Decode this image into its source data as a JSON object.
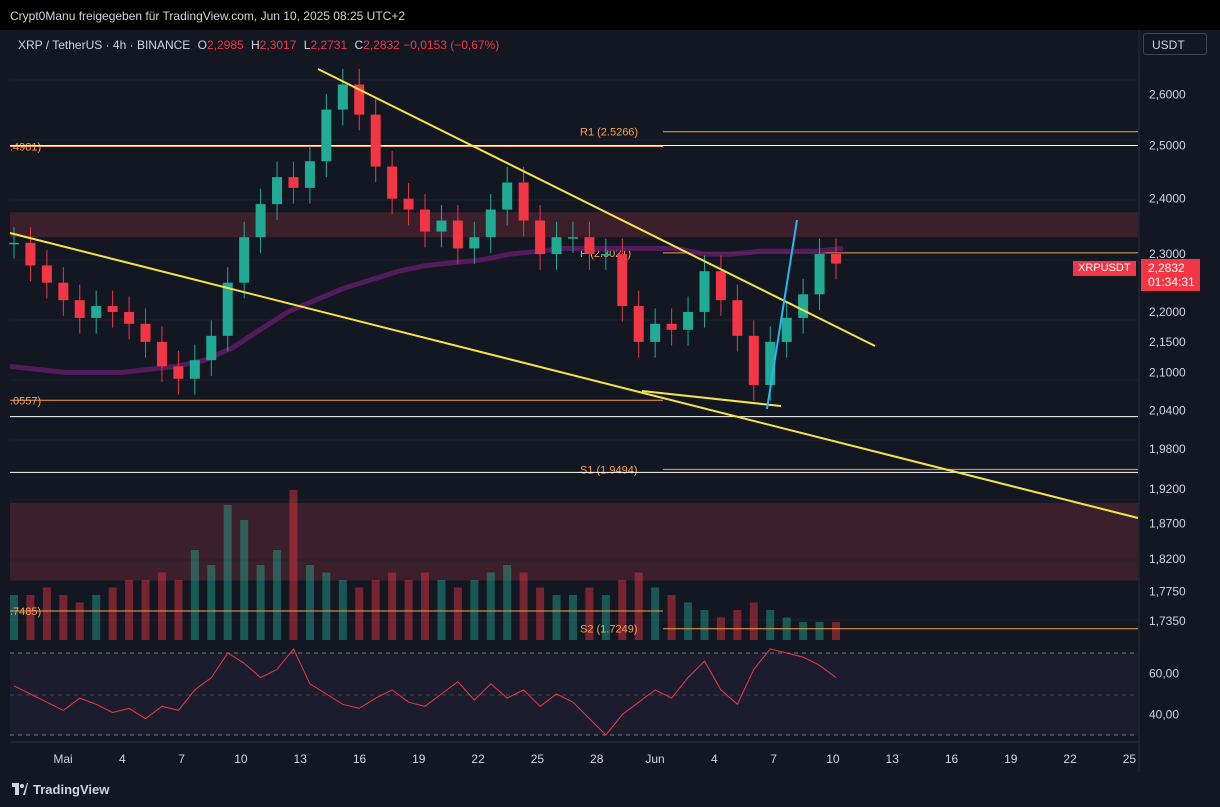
{
  "header": {
    "publisher_line": "Crypt0Manu freigegeben für TradingView.com, Jun 10, 2025 08:25 UTC+2"
  },
  "symbol": {
    "name": "XRP / TetherUS · 4h · BINANCE",
    "open_label": "O",
    "open": "2,2985",
    "high_label": "H",
    "high": "2,3017",
    "low_label": "L",
    "low": "2,2731",
    "close_label": "C",
    "close": "2,2832",
    "change": "−0,0153 (−0,67%)"
  },
  "currency_button": "USDT",
  "last_price": {
    "symbol": "XRPUSDT",
    "price": "2,2832",
    "countdown": "01:34:31"
  },
  "brand": "TradingView",
  "colors": {
    "background": "#131722",
    "up": "#22ab94",
    "down": "#f23645",
    "trendline": "#f5e34b",
    "ma": "#5a1d63",
    "level": "#f7a04b",
    "support_line": "#ffffff",
    "impulse": "#29b6f6",
    "rsi": "#f23645"
  },
  "chart_data": {
    "type": "line",
    "title": "XRP / TetherUS · 4h · BINANCE",
    "y_scale": "log",
    "y_ticks": [
      "2,6000",
      "2,5000",
      "2,4000",
      "2,3000",
      "2,2000",
      "2,1500",
      "2,1000",
      "2,0400",
      "1,9800",
      "1,9200",
      "1,8700",
      "1,8200",
      "1,7750",
      "1,7350"
    ],
    "x_ticks": [
      "Mai",
      "4",
      "7",
      "10",
      "13",
      "16",
      "19",
      "22",
      "25",
      "28",
      "Jun",
      "4",
      "7",
      "10",
      "13",
      "16",
      "19",
      "22",
      "25"
    ],
    "ylim": [
      1.71,
      2.68
    ],
    "series": [
      {
        "values": [
          2.32,
          2.28,
          2.25,
          2.22,
          2.19,
          2.21,
          2.2,
          2.18,
          2.15,
          2.11,
          2.09,
          2.12,
          2.16,
          2.25,
          2.33,
          2.39,
          2.44,
          2.42,
          2.47,
          2.57,
          2.62,
          2.56,
          2.46,
          2.4,
          2.38,
          2.34,
          2.36,
          2.31,
          2.33,
          2.38,
          2.43,
          2.36,
          2.3,
          2.33,
          2.33,
          2.3,
          2.3,
          2.21,
          2.15,
          2.18,
          2.17,
          2.2,
          2.27,
          2.22,
          2.16,
          2.08,
          2.15,
          2.19,
          2.23,
          2.3,
          2.2832
        ]
      }
    ],
    "rsi": {
      "y_ticks": [
        "60,00",
        "40,00"
      ],
      "values": [
        54,
        50,
        46,
        42,
        48,
        45,
        41,
        43,
        38,
        44,
        42,
        52,
        58,
        70,
        65,
        58,
        62,
        72,
        55,
        50,
        45,
        43,
        48,
        52,
        46,
        44,
        50,
        56,
        47,
        55,
        48,
        52,
        44,
        50,
        46,
        38,
        30,
        40,
        46,
        52,
        48,
        58,
        66,
        52,
        45,
        62,
        72,
        70,
        68,
        64,
        58
      ]
    },
    "volume": {
      "values": [
        0.3,
        0.3,
        0.35,
        0.3,
        0.25,
        0.3,
        0.35,
        0.4,
        0.4,
        0.45,
        0.4,
        0.6,
        0.5,
        0.9,
        0.8,
        0.5,
        0.6,
        1.0,
        0.5,
        0.45,
        0.4,
        0.35,
        0.4,
        0.45,
        0.4,
        0.45,
        0.4,
        0.35,
        0.4,
        0.45,
        0.5,
        0.45,
        0.35,
        0.3,
        0.3,
        0.35,
        0.3,
        0.4,
        0.45,
        0.35,
        0.3,
        0.25,
        0.2,
        0.15,
        0.2,
        0.25,
        0.2,
        0.15,
        0.12,
        0.12,
        0.12
      ]
    },
    "levels": [
      {
        "label": "R1 (2.5266)",
        "value": 2.5266
      },
      {
        "label": "(2.3021)",
        "value": 2.3021,
        "prefix": "P"
      },
      {
        "label": "S1 (1.9494)",
        "value": 1.9494
      },
      {
        "label": "S2 (1.7249)",
        "value": 1.7249
      },
      {
        "label": ".4981)",
        "value": 2.4981
      },
      {
        "label": ".0557)",
        "value": 2.0557
      },
      {
        "label": ".7485)",
        "value": 1.7485
      }
    ],
    "horizontal_lines": [
      2.5,
      2.03,
      1.945
    ],
    "zones": [
      {
        "from": 2.33,
        "to": 2.375
      },
      {
        "from": 1.79,
        "to": 1.9
      }
    ],
    "moving_average": [
      2.11,
      2.105,
      2.1,
      2.1,
      2.1,
      2.105,
      2.11,
      2.12,
      2.14,
      2.17,
      2.2,
      2.22,
      2.24,
      2.255,
      2.27,
      2.28,
      2.285,
      2.29,
      2.3,
      2.305,
      2.31,
      2.31,
      2.31,
      2.31,
      2.31,
      2.3,
      2.3,
      2.305,
      2.305,
      2.305,
      2.31
    ]
  }
}
